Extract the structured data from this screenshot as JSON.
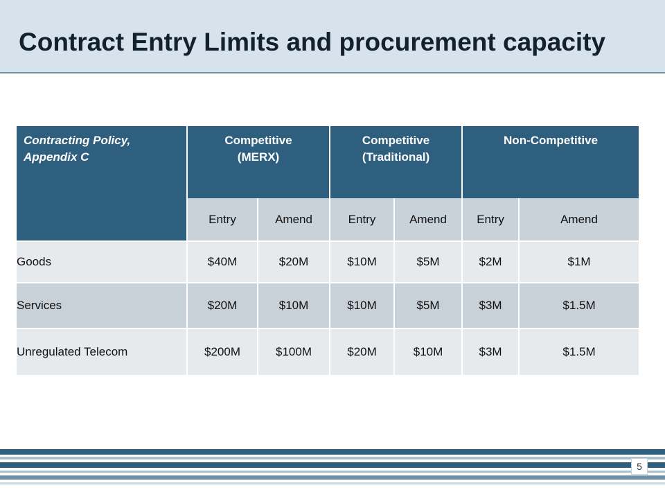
{
  "title": "Contract Entry Limits and procurement capacity",
  "table": {
    "corner_label_line1": "Contracting Policy,",
    "corner_label_line2": "Appendix C",
    "groups": [
      {
        "line1": "Competitive",
        "line2": "(MERX)"
      },
      {
        "line1": "Competitive",
        "line2": "(Traditional)"
      },
      {
        "line1": "Non-Competitive",
        "line2": ""
      }
    ],
    "subheaders": [
      "Entry",
      "Amend",
      "Entry",
      "Amend",
      "Entry",
      "Amend"
    ],
    "rows": [
      {
        "label": "Goods",
        "values": [
          "$40M",
          "$20M",
          "$10M",
          "$5M",
          "$2M",
          "$1M"
        ]
      },
      {
        "label": "Services",
        "values": [
          "$20M",
          "$10M",
          "$10M",
          "$5M",
          "$3M",
          "$1.5M"
        ]
      },
      {
        "label": "Unregulated Telecom",
        "values": [
          "$200M",
          "$100M",
          "$20M",
          "$10M",
          "$3M",
          "$1.5M"
        ]
      }
    ]
  },
  "page_number": "5",
  "colors": {
    "header_bg": "#2e5f7e",
    "title_bar_bg": "#d6e3ec",
    "stripe_dark": "#2e5f7e",
    "stripe_light": "#a9bfce"
  }
}
